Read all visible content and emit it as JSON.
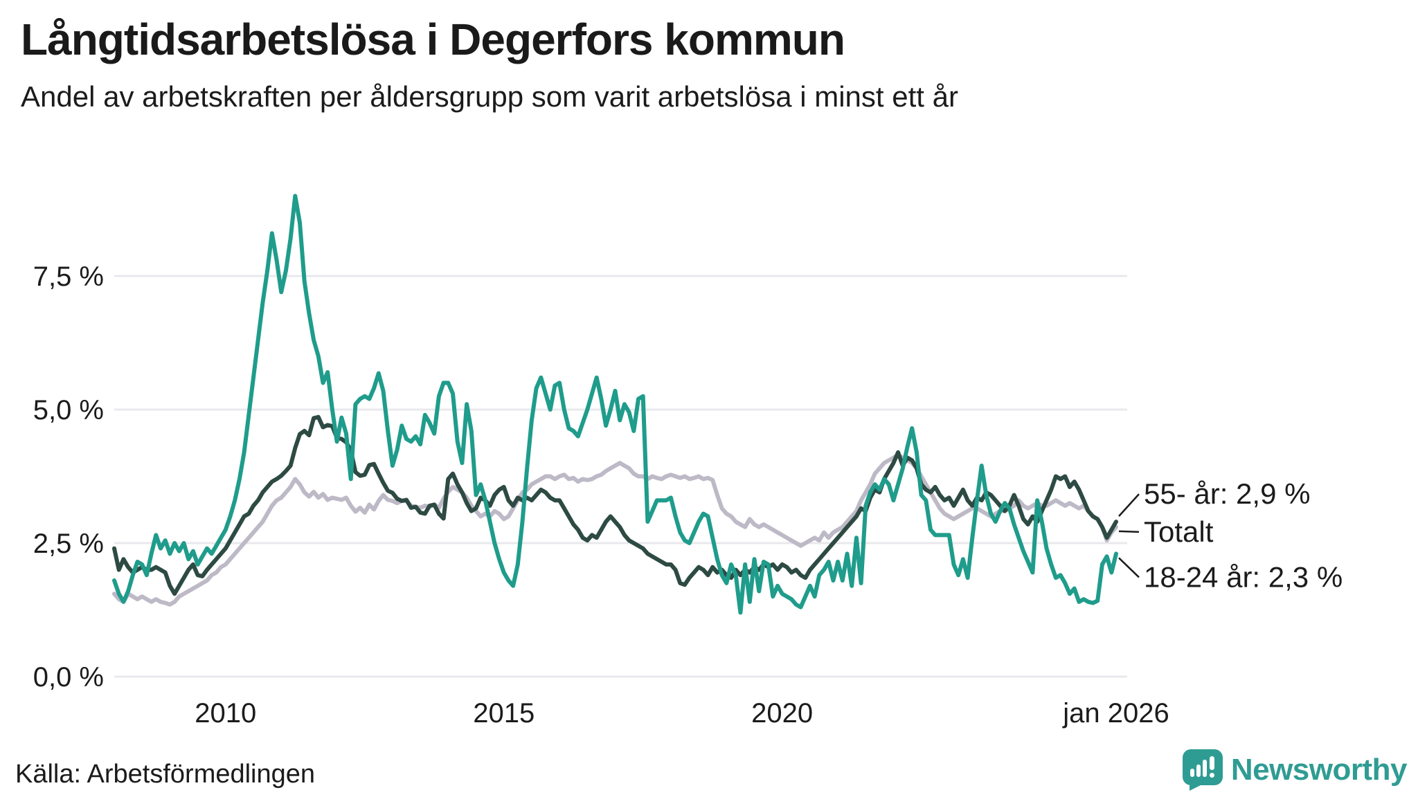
{
  "header": {
    "title": "Långtidsarbetslösa i Degerfors kommun",
    "subtitle": "Andel av arbetskraften per åldersgrupp som varit arbetslösa i minst ett år"
  },
  "source": {
    "label": "Källa: Arbetsförmedlingen"
  },
  "branding": {
    "name": "Newsworthy",
    "icon": "bar-chart-speech-bubble-icon",
    "color": "#2F9C93"
  },
  "chart_data": {
    "type": "line",
    "title": "Långtidsarbetslösa i Degerfors kommun",
    "x_unit": "month",
    "x_start_year": 2008.0,
    "x_end_year": 2026.0,
    "ylim": [
      0,
      9.3
    ],
    "grid": true,
    "background": "#ffffff",
    "gridline_color": "#e9e8ec",
    "text_color": "#1b1b1b",
    "legend_position": "right-end-labels",
    "yticks": [
      {
        "value": 0.0,
        "label": "0,0 %"
      },
      {
        "value": 2.5,
        "label": "2,5 %"
      },
      {
        "value": 5.0,
        "label": "5,0 %"
      },
      {
        "value": 7.5,
        "label": "7,5 %"
      }
    ],
    "xticks": [
      {
        "year": 2010,
        "label": "2010"
      },
      {
        "year": 2015,
        "label": "2015"
      },
      {
        "year": 2020,
        "label": "2020"
      },
      {
        "year": 2026,
        "label": "jan 2026"
      }
    ],
    "series": [
      {
        "name": "Totalt",
        "color": "#BDB9C6",
        "end_label": "Totalt",
        "end_value": 2.8,
        "values": [
          1.55,
          1.45,
          1.4,
          1.55,
          1.5,
          1.45,
          1.5,
          1.45,
          1.4,
          1.45,
          1.4,
          1.38,
          1.35,
          1.4,
          1.5,
          1.55,
          1.6,
          1.65,
          1.7,
          1.75,
          1.8,
          1.9,
          1.95,
          2.05,
          2.1,
          2.2,
          2.3,
          2.4,
          2.5,
          2.6,
          2.7,
          2.8,
          2.9,
          3.05,
          3.2,
          3.3,
          3.35,
          3.45,
          3.55,
          3.7,
          3.6,
          3.45,
          3.37,
          3.46,
          3.35,
          3.42,
          3.31,
          3.35,
          3.33,
          3.31,
          3.35,
          3.2,
          3.09,
          3.16,
          3.07,
          3.22,
          3.13,
          3.29,
          3.4,
          3.31,
          3.29,
          3.25,
          3.29,
          3.29,
          3.2,
          3.18,
          3.16,
          3.2,
          3.18,
          3.22,
          3.16,
          3.33,
          3.46,
          3.55,
          3.5,
          3.45,
          3.35,
          3.2,
          3.1,
          3.0,
          3.05,
          3.0,
          3.1,
          3.05,
          2.95,
          3.0,
          3.15,
          3.3,
          3.45,
          3.5,
          3.6,
          3.65,
          3.7,
          3.75,
          3.75,
          3.7,
          3.75,
          3.78,
          3.7,
          3.72,
          3.65,
          3.7,
          3.68,
          3.7,
          3.75,
          3.78,
          3.85,
          3.9,
          3.95,
          4.0,
          3.95,
          3.9,
          3.8,
          3.75,
          3.75,
          3.7,
          3.75,
          3.72,
          3.7,
          3.75,
          3.78,
          3.75,
          3.72,
          3.75,
          3.7,
          3.72,
          3.75,
          3.7,
          3.72,
          3.68,
          3.4,
          3.15,
          3.05,
          3.0,
          2.9,
          2.85,
          2.8,
          2.95,
          2.85,
          2.8,
          2.85,
          2.8,
          2.75,
          2.7,
          2.65,
          2.6,
          2.55,
          2.5,
          2.45,
          2.5,
          2.55,
          2.6,
          2.55,
          2.7,
          2.6,
          2.7,
          2.75,
          2.8,
          2.9,
          3.0,
          3.1,
          3.3,
          3.45,
          3.6,
          3.8,
          3.9,
          4.0,
          4.05,
          4.1,
          4.15,
          4.1,
          4.05,
          4.0,
          3.9,
          3.75,
          3.6,
          3.45,
          3.3,
          3.15,
          3.05,
          3.0,
          2.95,
          3.0,
          3.05,
          3.1,
          3.15,
          3.15,
          3.1,
          3.05,
          3.0,
          3.05,
          3.1,
          3.1,
          3.15,
          3.2,
          3.3,
          3.2,
          3.15,
          3.2,
          3.25,
          3.2,
          3.2,
          3.25,
          3.3,
          3.25,
          3.2,
          3.25,
          3.2,
          3.15,
          3.2,
          3.1,
          3.0,
          2.95,
          2.8,
          2.55,
          2.7,
          2.8
        ]
      },
      {
        "name": "55- år",
        "color": "#2D4A43",
        "end_label": "55- år: 2,9 %",
        "end_value": 2.9,
        "values": [
          2.4,
          2.0,
          2.2,
          2.05,
          1.95,
          2.0,
          2.05,
          2.0,
          2.0,
          2.05,
          2.0,
          1.95,
          1.7,
          1.55,
          1.7,
          1.85,
          2.0,
          2.1,
          1.9,
          1.88,
          2.0,
          2.1,
          2.2,
          2.3,
          2.4,
          2.55,
          2.7,
          2.85,
          3.0,
          3.05,
          3.2,
          3.3,
          3.45,
          3.55,
          3.65,
          3.7,
          3.76,
          3.85,
          3.95,
          4.28,
          4.54,
          4.6,
          4.52,
          4.84,
          4.86,
          4.67,
          4.71,
          4.69,
          4.47,
          4.45,
          4.39,
          4.24,
          3.83,
          3.76,
          3.78,
          3.96,
          3.98,
          3.8,
          3.63,
          3.48,
          3.44,
          3.33,
          3.29,
          3.31,
          3.16,
          3.18,
          3.07,
          3.05,
          3.2,
          3.22,
          3.05,
          2.96,
          3.7,
          3.8,
          3.6,
          3.45,
          3.25,
          3.1,
          3.15,
          3.35,
          3.3,
          3.2,
          3.4,
          3.5,
          3.55,
          3.3,
          3.2,
          3.35,
          3.3,
          3.35,
          3.3,
          3.4,
          3.5,
          3.45,
          3.35,
          3.3,
          3.3,
          3.15,
          3.0,
          2.85,
          2.75,
          2.6,
          2.55,
          2.65,
          2.6,
          2.75,
          2.9,
          3.0,
          2.9,
          2.8,
          2.65,
          2.55,
          2.5,
          2.45,
          2.4,
          2.3,
          2.25,
          2.2,
          2.15,
          2.1,
          2.1,
          2.0,
          1.75,
          1.72,
          1.85,
          1.95,
          2.05,
          2.0,
          1.9,
          2.05,
          1.95,
          2.0,
          1.9,
          1.85,
          2.0,
          1.9,
          2.0,
          1.95,
          2.05,
          2.0,
          2.1,
          2.05,
          2.1,
          2.0,
          2.1,
          2.05,
          1.95,
          2.0,
          1.9,
          1.85,
          2.0,
          2.1,
          2.2,
          2.3,
          2.4,
          2.5,
          2.6,
          2.7,
          2.8,
          2.9,
          3.0,
          3.15,
          3.1,
          3.35,
          3.5,
          3.45,
          3.7,
          3.85,
          4.0,
          4.2,
          3.95,
          4.1,
          4.05,
          3.9,
          3.6,
          3.5,
          3.45,
          3.55,
          3.4,
          3.3,
          3.35,
          3.2,
          3.35,
          3.5,
          3.3,
          3.2,
          3.35,
          3.3,
          3.45,
          3.4,
          3.3,
          3.2,
          3.1,
          3.2,
          3.4,
          3.2,
          2.95,
          2.85,
          3.0,
          2.9,
          3.1,
          3.3,
          3.5,
          3.75,
          3.7,
          3.75,
          3.55,
          3.65,
          3.5,
          3.3,
          3.1,
          3.0,
          2.95,
          2.8,
          2.6,
          2.75,
          2.9
        ]
      },
      {
        "name": "18-24 år",
        "color": "#1F9C8B",
        "end_label": "18-24 år: 2,3 %",
        "end_value": 2.3,
        "values": [
          1.8,
          1.55,
          1.4,
          1.6,
          1.9,
          2.15,
          2.1,
          1.9,
          2.3,
          2.65,
          2.4,
          2.55,
          2.3,
          2.5,
          2.35,
          2.5,
          2.2,
          2.35,
          2.1,
          2.25,
          2.4,
          2.3,
          2.45,
          2.6,
          2.75,
          3.0,
          3.3,
          3.7,
          4.2,
          4.9,
          5.6,
          6.3,
          7.0,
          7.6,
          8.3,
          7.8,
          7.2,
          7.6,
          8.2,
          9.0,
          8.5,
          7.4,
          6.8,
          6.3,
          6.0,
          5.5,
          5.7,
          5.0,
          4.4,
          4.85,
          4.55,
          3.7,
          5.1,
          5.2,
          5.25,
          5.2,
          5.4,
          5.68,
          5.35,
          4.6,
          3.95,
          4.25,
          4.7,
          4.45,
          4.4,
          4.5,
          4.35,
          4.9,
          4.75,
          4.55,
          5.25,
          5.5,
          5.5,
          5.3,
          4.4,
          4.0,
          5.1,
          4.6,
          3.4,
          3.6,
          3.3,
          2.9,
          2.5,
          2.2,
          1.95,
          1.8,
          1.7,
          2.1,
          2.9,
          3.9,
          4.8,
          5.4,
          5.6,
          5.3,
          5.0,
          5.45,
          5.5,
          5.0,
          4.65,
          4.6,
          4.5,
          4.75,
          5.0,
          5.3,
          5.6,
          5.2,
          4.7,
          5.0,
          5.35,
          4.8,
          5.1,
          4.95,
          4.6,
          5.2,
          5.25,
          2.9,
          3.1,
          3.3,
          3.3,
          3.3,
          3.35,
          3.0,
          2.7,
          2.55,
          2.5,
          2.7,
          2.9,
          3.05,
          3.0,
          2.6,
          2.2,
          1.9,
          1.75,
          2.1,
          1.9,
          1.2,
          2.1,
          1.4,
          2.2,
          1.6,
          2.15,
          2.1,
          1.5,
          1.7,
          1.55,
          1.5,
          1.45,
          1.35,
          1.3,
          1.5,
          1.7,
          1.5,
          1.9,
          2.0,
          2.15,
          1.8,
          2.15,
          1.8,
          2.3,
          1.7,
          2.6,
          1.75,
          3.2,
          3.45,
          3.6,
          3.5,
          3.7,
          3.6,
          3.3,
          3.6,
          3.9,
          4.3,
          4.65,
          4.2,
          3.4,
          3.3,
          2.75,
          2.65,
          2.65,
          2.65,
          2.65,
          2.1,
          1.9,
          2.2,
          1.85,
          2.6,
          3.3,
          3.95,
          3.4,
          3.05,
          2.9,
          3.1,
          3.25,
          3.15,
          2.85,
          2.6,
          2.35,
          2.15,
          1.95,
          3.3,
          2.9,
          2.4,
          2.1,
          1.85,
          1.9,
          1.75,
          1.55,
          1.65,
          1.4,
          1.45,
          1.4,
          1.38,
          1.42,
          2.1,
          2.25,
          1.95,
          2.3
        ]
      }
    ]
  }
}
